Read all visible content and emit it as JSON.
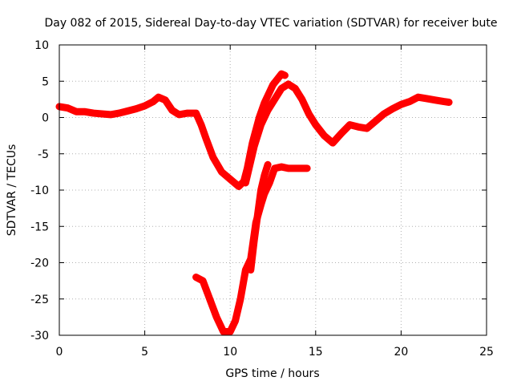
{
  "chart_data": {
    "type": "scatter",
    "title": "Day 082 of 2015, Sidereal Day-to-day VTEC variation (SDTVAR) for receiver bute",
    "xlabel": "GPS time / hours",
    "ylabel": "SDTVAR / TECUs",
    "xlim": [
      0,
      25
    ],
    "ylim": [
      -30,
      10
    ],
    "x_ticks": [
      0,
      5,
      10,
      15,
      20,
      25
    ],
    "y_ticks": [
      -30,
      -25,
      -20,
      -15,
      -10,
      -5,
      0,
      5,
      10
    ],
    "grid": true,
    "marker": "+",
    "color": "#ff0000",
    "series": [
      {
        "name": "track 1",
        "x": [
          0.0,
          0.5,
          1.0,
          1.5,
          2.0,
          2.5,
          3.0,
          3.5,
          4.0,
          4.5,
          5.0,
          5.5,
          5.8,
          6.2,
          6.6,
          7.0,
          7.5,
          8.0,
          8.3,
          8.6,
          9.0,
          9.5,
          10.0,
          10.5,
          10.8,
          11.0,
          11.3,
          11.7,
          12.0,
          12.5,
          13.0,
          13.2
        ],
        "y": [
          1.5,
          1.3,
          0.8,
          0.8,
          0.6,
          0.5,
          0.4,
          0.6,
          0.9,
          1.2,
          1.6,
          2.2,
          2.8,
          2.4,
          1.0,
          0.4,
          0.6,
          0.6,
          -1.0,
          -3.0,
          -5.5,
          -7.5,
          -8.5,
          -9.5,
          -8.8,
          -7.0,
          -3.5,
          0.0,
          2.0,
          4.5,
          6.0,
          5.8
        ]
      },
      {
        "name": "track 2",
        "x": [
          10.9,
          11.1,
          11.4,
          11.8,
          12.2,
          12.6,
          13.0,
          13.4,
          13.8,
          14.2,
          14.6,
          15.0,
          15.5,
          16.0,
          16.5,
          17.0,
          17.5,
          18.0,
          18.5,
          19.0,
          19.5,
          20.0,
          20.5,
          21.0,
          21.5,
          22.0,
          22.5,
          22.8
        ],
        "y": [
          -9.0,
          -7.0,
          -4.0,
          -1.0,
          1.0,
          2.5,
          4.0,
          4.6,
          4.0,
          2.5,
          0.5,
          -1.0,
          -2.5,
          -3.5,
          -2.2,
          -1.0,
          -1.3,
          -1.5,
          -0.5,
          0.5,
          1.2,
          1.8,
          2.2,
          2.8,
          2.6,
          2.4,
          2.2,
          2.1
        ]
      },
      {
        "name": "track 3",
        "x": [
          8.0,
          8.4,
          8.8,
          9.2,
          9.6,
          10.0,
          10.3,
          10.6,
          10.9,
          11.2,
          11.5,
          11.8,
          12.0,
          12.3,
          12.6,
          13.0,
          13.4,
          13.8,
          14.2,
          14.5
        ],
        "y": [
          -22.0,
          -22.5,
          -25.0,
          -27.5,
          -29.5,
          -29.5,
          -28.0,
          -25.0,
          -21.0,
          -19.5,
          -14.5,
          -12.0,
          -10.5,
          -9.0,
          -7.0,
          -6.8,
          -7.0,
          -7.0,
          -7.0,
          -7.0
        ]
      },
      {
        "name": "track 4",
        "x": [
          11.2,
          11.4,
          11.6,
          11.8,
          12.0,
          12.2
        ],
        "y": [
          -21.0,
          -17.0,
          -13.5,
          -10.0,
          -8.0,
          -6.5
        ]
      }
    ]
  }
}
